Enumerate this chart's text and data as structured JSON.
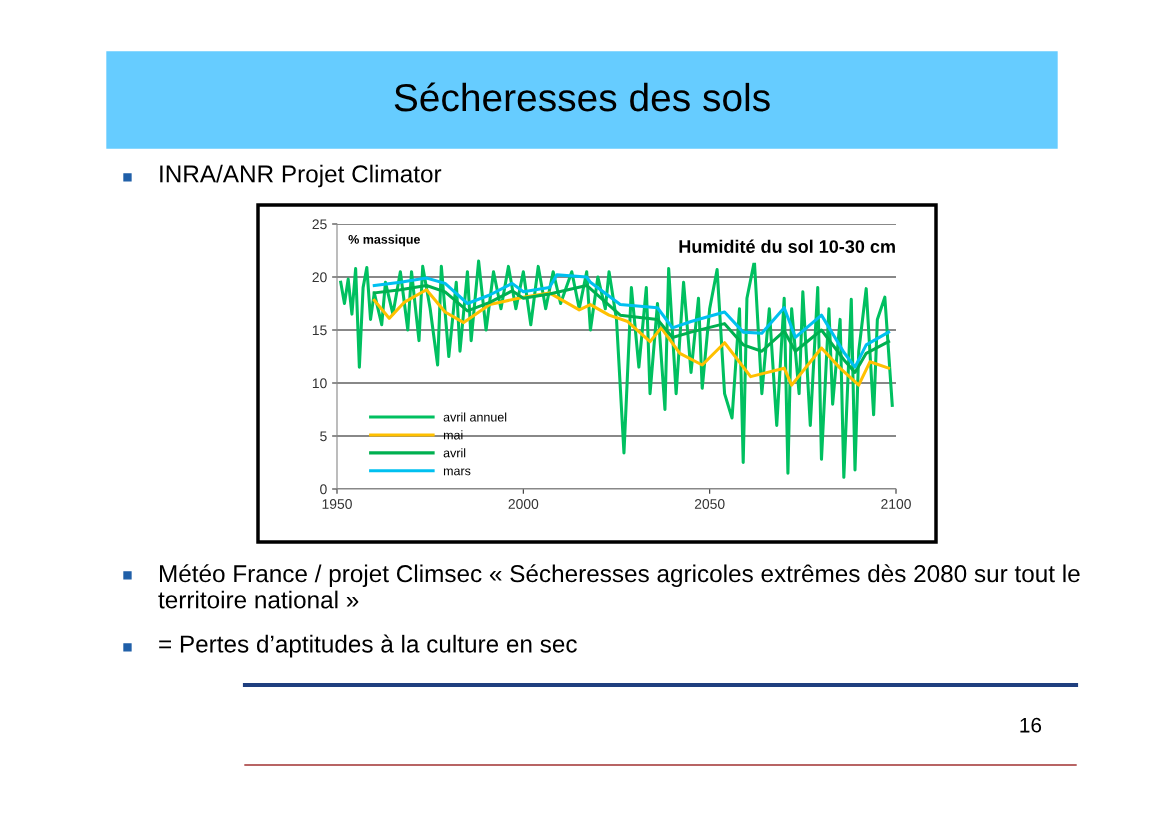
{
  "chart_data": {
    "type": "line",
    "title": "Sécheresses des sols",
    "subtitle": "Humidité du sol 10-30 cm",
    "ylabel": "% massique",
    "annotations": [
      "INRA/ANR Projet Climator",
      "Météo France / projet Climsec « Sécheresses agricoles extrêmes dès 2080 sur tout le territoire national »",
      "= Pertes d’aptitudes à la culture en sec",
      "16"
    ],
    "xlim": [
      1950,
      2100
    ],
    "xticks": [
      1950,
      2000,
      2050,
      2100
    ],
    "ylim": [
      0,
      25
    ],
    "yticks": [
      0,
      5,
      10,
      15,
      20,
      25
    ],
    "grid": "y",
    "legend": "bottom left",
    "line_style": "solid",
    "marker": "none",
    "series": [
      {
        "name": "avril annuel",
        "color": "#00c060",
        "x": [
          1951,
          1952,
          1953,
          1954,
          1955,
          1956,
          1957,
          1958,
          1959,
          1960,
          1962,
          1963,
          1965,
          1967,
          1969,
          1970,
          1972,
          1973,
          1975,
          1977,
          1978,
          1980,
          1982,
          1983,
          1985,
          1986,
          1988,
          1990,
          1992,
          1994,
          1996,
          1998,
          2000,
          2002,
          2004,
          2006,
          2008,
          2010,
          2013,
          2015,
          2017,
          2018,
          2020,
          2022,
          2023,
          2025,
          2027,
          2029,
          2031,
          2033,
          2034,
          2036,
          2038,
          2039,
          2041,
          2043,
          2045,
          2047,
          2048,
          2050,
          2052,
          2054,
          2056,
          2058,
          2059,
          2060,
          2062,
          2064,
          2066,
          2068,
          2070,
          2071,
          2072,
          2074,
          2075,
          2077,
          2079,
          2080,
          2082,
          2083,
          2085,
          2086,
          2088,
          2089,
          2090,
          2092,
          2094,
          2095,
          2097,
          2099
        ],
        "values": [
          19.5,
          17.5,
          19.8,
          16.5,
          20.8,
          11.5,
          19,
          20.9,
          16,
          18.5,
          15.5,
          19.5,
          16.5,
          20.5,
          15,
          20.5,
          14,
          21,
          17,
          11.7,
          21,
          12.5,
          19.5,
          13,
          20.5,
          14,
          21.5,
          15,
          20.5,
          17,
          21,
          17,
          20.5,
          15.5,
          21,
          17,
          20.5,
          17.5,
          20.5,
          17,
          20.5,
          15,
          20,
          17,
          20.5,
          16,
          3.4,
          19,
          11.5,
          19,
          9,
          17.5,
          7.5,
          20.8,
          9,
          19.5,
          11,
          18,
          9.5,
          17,
          20.7,
          9,
          6.7,
          17,
          2.5,
          18,
          21.5,
          9,
          17,
          6,
          18,
          1.5,
          17,
          9,
          18.6,
          6,
          19,
          2.8,
          17,
          8,
          16,
          1.1,
          17.9,
          1.8,
          13,
          18.9,
          7,
          16,
          18.1,
          7.9
        ]
      },
      {
        "name": "mai",
        "color": "#ffc000",
        "x": [
          1960,
          1964,
          1968,
          1974,
          1979,
          1984,
          1991,
          2000,
          2007,
          2015,
          2018,
          2023,
          2028,
          2034,
          2037,
          2042,
          2048,
          2054,
          2061,
          2070,
          2072,
          2080,
          2085,
          2090,
          2093,
          2098
        ],
        "values": [
          17.8,
          16.1,
          17.6,
          18.8,
          16.7,
          15.7,
          17.4,
          18.1,
          18.5,
          16.9,
          17.4,
          16.4,
          15.8,
          13.9,
          15.2,
          12.8,
          11.7,
          13.8,
          10.6,
          11.4,
          9.8,
          13.3,
          11.4,
          9.8,
          12,
          11.4
        ]
      },
      {
        "name": "avril",
        "color": "#00b050",
        "x": [
          1960,
          1967,
          1974,
          1979,
          1985,
          1991,
          1997,
          2000,
          2007,
          2017,
          2026,
          2036,
          2040,
          2045,
          2054,
          2059,
          2064,
          2070,
          2073,
          2080,
          2086,
          2089,
          2092,
          2098
        ],
        "values": [
          18.5,
          18.8,
          19.2,
          18.6,
          16.8,
          17.6,
          18.7,
          18,
          18.4,
          19.2,
          16.4,
          16,
          14.3,
          14.8,
          15.6,
          13.6,
          13,
          14.9,
          13,
          15,
          12.2,
          11,
          12.8,
          13.9
        ]
      },
      {
        "name": "mars",
        "color": "#00c0f0",
        "x": [
          1960,
          1967,
          1974,
          1979,
          1985,
          1991,
          1997,
          2000,
          2007,
          2009,
          2017,
          2018,
          2026,
          2036,
          2040,
          2045,
          2054,
          2059,
          2064,
          2070,
          2073,
          2080,
          2086,
          2089,
          2092,
          2098
        ],
        "values": [
          19.2,
          19.5,
          19.9,
          19.4,
          17.5,
          18.3,
          19.4,
          18.6,
          19,
          20.2,
          20,
          19.5,
          17.4,
          17.1,
          15.2,
          15.8,
          16.7,
          14.8,
          14.7,
          17.1,
          14.3,
          16.4,
          12.9,
          11.5,
          13.6,
          14.8
        ]
      }
    ]
  }
}
